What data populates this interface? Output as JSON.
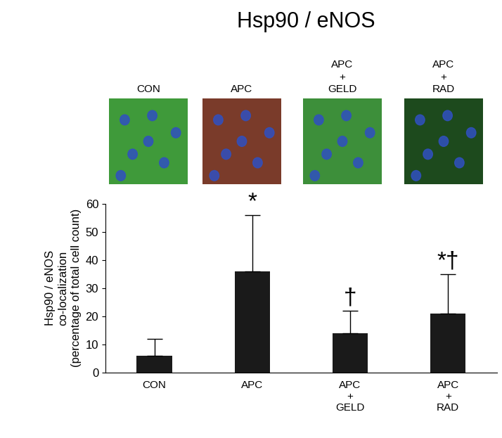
{
  "chart_data": {
    "type": "bar",
    "title": "Hsp90 / eNOS",
    "panels": [
      "CON",
      "APC",
      "APC\n+\nGELD",
      "APC\n+\nRAD"
    ],
    "categories": [
      "CON",
      "APC",
      "APC\n+\nGELD",
      "APC\n+\nRAD"
    ],
    "values": [
      6,
      36,
      14,
      21
    ],
    "errors": [
      6,
      20,
      8,
      14
    ],
    "significance": [
      null,
      "*",
      "†",
      "*†"
    ],
    "color": "#1a1a1a",
    "y_label": "Hsp90 / eNOS\nco-localization\n(percentage of total cell count)",
    "ylim": [
      0,
      60
    ],
    "yticks": [
      0,
      10,
      20,
      30,
      40,
      50,
      60
    ],
    "grid": false
  }
}
